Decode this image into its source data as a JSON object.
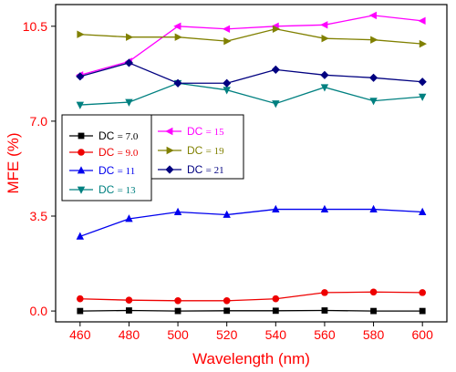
{
  "chart_data": {
    "type": "line",
    "title": "",
    "xlabel": "Wavelength (nm)",
    "ylabel": "MFE (%)",
    "xlim": [
      450,
      610
    ],
    "ylim": [
      -0.4,
      11.3
    ],
    "x_ticks": [
      "460",
      "480",
      "500",
      "520",
      "540",
      "560",
      "580",
      "600"
    ],
    "y_ticks": [
      "0.0",
      "3.5",
      "7.0",
      "10.5"
    ],
    "x": [
      460,
      480,
      500,
      520,
      540,
      560,
      580,
      600
    ],
    "grid": false,
    "legend_placement": "upper-left, two boxes",
    "axis_text_color": "#ff0000",
    "series": [
      {
        "name": "DC = 7.0",
        "dc_label": "DC",
        "dc_value": "= 7.0",
        "color": "#000000",
        "marker": "square",
        "legend_group": 0,
        "values": [
          0.0,
          0.02,
          0.0,
          0.01,
          0.01,
          0.02,
          0.0,
          0.0
        ]
      },
      {
        "name": "DC = 9.0",
        "dc_label": "DC",
        "dc_value": "= 9.0",
        "color": "#ee0000",
        "marker": "circle",
        "legend_group": 0,
        "values": [
          0.45,
          0.4,
          0.38,
          0.38,
          0.45,
          0.68,
          0.7,
          0.68
        ]
      },
      {
        "name": "DC = 11",
        "dc_label": "DC",
        "dc_value": "= 11",
        "color": "#0000ee",
        "marker": "triangle-up",
        "legend_group": 0,
        "values": [
          2.75,
          3.4,
          3.65,
          3.55,
          3.75,
          3.75,
          3.75,
          3.65
        ]
      },
      {
        "name": "DC = 13",
        "dc_label": "DC",
        "dc_value": "= 13",
        "color": "#008080",
        "marker": "triangle-down",
        "legend_group": 0,
        "values": [
          7.6,
          7.7,
          8.4,
          8.15,
          7.65,
          8.25,
          7.75,
          7.9
        ]
      },
      {
        "name": "DC = 15",
        "dc_label": "DC",
        "dc_value": "= 15",
        "color": "#ff00ff",
        "marker": "triangle-left",
        "legend_group": 1,
        "values": [
          8.7,
          9.2,
          10.5,
          10.4,
          10.5,
          10.55,
          10.9,
          10.7
        ]
      },
      {
        "name": "DC = 19",
        "dc_label": "DC",
        "dc_value": "= 19",
        "color": "#808000",
        "marker": "triangle-right",
        "legend_group": 1,
        "values": [
          10.2,
          10.1,
          10.1,
          9.95,
          10.4,
          10.05,
          10.0,
          9.85
        ]
      },
      {
        "name": "DC = 21",
        "dc_label": "DC",
        "dc_value": "= 21",
        "color": "#000080",
        "marker": "diamond",
        "legend_group": 1,
        "values": [
          8.65,
          9.15,
          8.4,
          8.4,
          8.9,
          8.7,
          8.6,
          8.45
        ]
      }
    ]
  }
}
